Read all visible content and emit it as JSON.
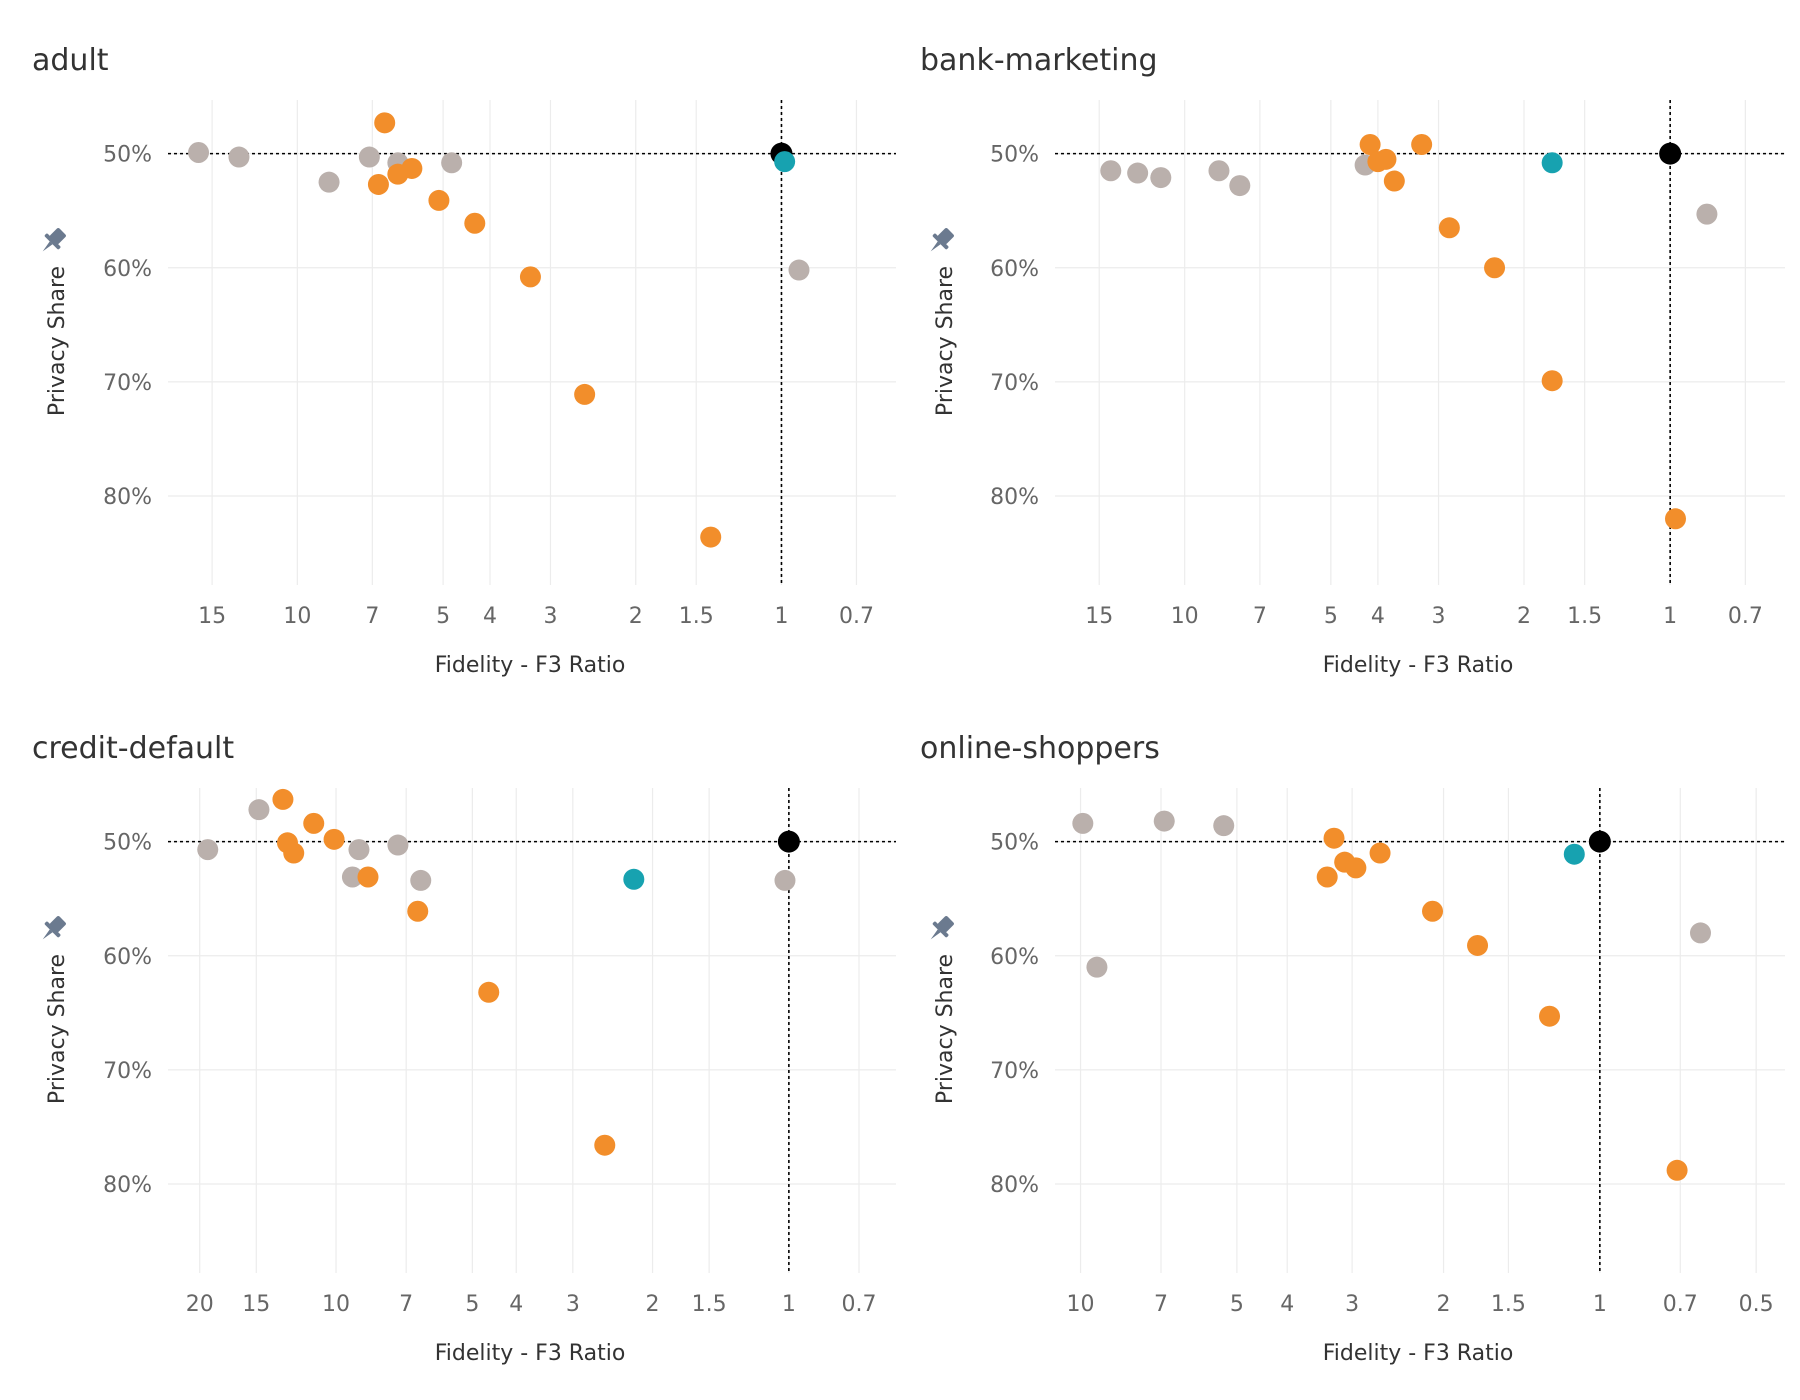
{
  "colors": {
    "synthetic": "#f28e2b",
    "baseline": "#bab0ac",
    "highlight": "#17a2b0",
    "reference": "#000000",
    "pin_icon": "#6b7a8f"
  },
  "icons": {
    "pin": "pin-icon"
  },
  "chart_data": [
    {
      "type": "scatter",
      "title": "adult",
      "xlabel": "Fidelity - F3 Ratio",
      "ylabel": "Privacy Share",
      "x_scale": "log-reversed",
      "xlim": [
        18.5,
        0.58
      ],
      "x_ticks": [
        15,
        10,
        7,
        5,
        4,
        3,
        2,
        1.5,
        1,
        0.7
      ],
      "y_reversed": true,
      "ylim": [
        0.453,
        0.878
      ],
      "y_ticks": [
        0.5,
        0.6,
        0.7,
        0.8
      ],
      "y_tick_labels": [
        "50%",
        "60%",
        "70%",
        "80%"
      ],
      "grid": true,
      "reference": {
        "x": 1,
        "y": 0.5
      },
      "points": [
        {
          "x": 16,
          "y": 0.499,
          "group": "baseline"
        },
        {
          "x": 13.2,
          "y": 0.503,
          "group": "baseline"
        },
        {
          "x": 8.6,
          "y": 0.525,
          "group": "baseline"
        },
        {
          "x": 7.1,
          "y": 0.503,
          "group": "baseline"
        },
        {
          "x": 6.2,
          "y": 0.508,
          "group": "baseline"
        },
        {
          "x": 4.8,
          "y": 0.508,
          "group": "baseline"
        },
        {
          "x": 0.92,
          "y": 0.602,
          "group": "baseline"
        },
        {
          "x": 6.6,
          "y": 0.473,
          "group": "synthetic"
        },
        {
          "x": 6.8,
          "y": 0.527,
          "group": "synthetic"
        },
        {
          "x": 6.2,
          "y": 0.518,
          "group": "synthetic"
        },
        {
          "x": 5.8,
          "y": 0.513,
          "group": "synthetic"
        },
        {
          "x": 5.1,
          "y": 0.541,
          "group": "synthetic"
        },
        {
          "x": 4.3,
          "y": 0.561,
          "group": "synthetic"
        },
        {
          "x": 3.3,
          "y": 0.608,
          "group": "synthetic"
        },
        {
          "x": 2.55,
          "y": 0.711,
          "group": "synthetic"
        },
        {
          "x": 1.4,
          "y": 0.836,
          "group": "synthetic"
        },
        {
          "x": 0.985,
          "y": 0.507,
          "group": "highlight"
        },
        {
          "x": 1,
          "y": 0.5,
          "group": "reference"
        }
      ]
    },
    {
      "type": "scatter",
      "title": "bank-marketing",
      "xlabel": "Fidelity - F3 Ratio",
      "ylabel": "Privacy Share",
      "x_scale": "log-reversed",
      "xlim": [
        18.5,
        0.58
      ],
      "x_ticks": [
        15,
        10,
        7,
        5,
        4,
        3,
        2,
        1.5,
        1,
        0.7
      ],
      "y_reversed": true,
      "ylim": [
        0.453,
        0.878
      ],
      "y_ticks": [
        0.5,
        0.6,
        0.7,
        0.8
      ],
      "y_tick_labels": [
        "50%",
        "60%",
        "70%",
        "80%"
      ],
      "grid": true,
      "reference": {
        "x": 1,
        "y": 0.5
      },
      "points": [
        {
          "x": 14.2,
          "y": 0.515,
          "group": "baseline"
        },
        {
          "x": 12.5,
          "y": 0.517,
          "group": "baseline"
        },
        {
          "x": 11.2,
          "y": 0.521,
          "group": "baseline"
        },
        {
          "x": 8.5,
          "y": 0.515,
          "group": "baseline"
        },
        {
          "x": 7.7,
          "y": 0.528,
          "group": "baseline"
        },
        {
          "x": 4.25,
          "y": 0.51,
          "group": "baseline"
        },
        {
          "x": 0.84,
          "y": 0.553,
          "group": "baseline"
        },
        {
          "x": 4.15,
          "y": 0.492,
          "group": "synthetic"
        },
        {
          "x": 4.0,
          "y": 0.507,
          "group": "synthetic"
        },
        {
          "x": 3.85,
          "y": 0.505,
          "group": "synthetic"
        },
        {
          "x": 3.25,
          "y": 0.492,
          "group": "synthetic"
        },
        {
          "x": 3.7,
          "y": 0.524,
          "group": "synthetic"
        },
        {
          "x": 2.85,
          "y": 0.565,
          "group": "synthetic"
        },
        {
          "x": 2.3,
          "y": 0.6,
          "group": "synthetic"
        },
        {
          "x": 1.75,
          "y": 0.699,
          "group": "synthetic"
        },
        {
          "x": 0.975,
          "y": 0.82,
          "group": "synthetic"
        },
        {
          "x": 1.75,
          "y": 0.508,
          "group": "highlight"
        },
        {
          "x": 1,
          "y": 0.5,
          "group": "reference"
        }
      ]
    },
    {
      "type": "scatter",
      "title": "credit-default",
      "xlabel": "Fidelity - F3 Ratio",
      "ylabel": "Privacy Share",
      "x_scale": "log-reversed",
      "xlim": [
        23.5,
        0.58
      ],
      "x_ticks": [
        20,
        15,
        10,
        7,
        5,
        4,
        3,
        2,
        1.5,
        1,
        0.7
      ],
      "y_reversed": true,
      "ylim": [
        0.453,
        0.878
      ],
      "y_ticks": [
        0.5,
        0.6,
        0.7,
        0.8
      ],
      "y_tick_labels": [
        "50%",
        "60%",
        "70%",
        "80%"
      ],
      "grid": true,
      "reference": {
        "x": 1,
        "y": 0.5
      },
      "points": [
        {
          "x": 19.2,
          "y": 0.507,
          "group": "baseline"
        },
        {
          "x": 14.8,
          "y": 0.472,
          "group": "baseline"
        },
        {
          "x": 9.2,
          "y": 0.531,
          "group": "baseline"
        },
        {
          "x": 8.9,
          "y": 0.507,
          "group": "baseline"
        },
        {
          "x": 7.3,
          "y": 0.503,
          "group": "baseline"
        },
        {
          "x": 6.5,
          "y": 0.534,
          "group": "baseline"
        },
        {
          "x": 1.02,
          "y": 0.534,
          "group": "baseline"
        },
        {
          "x": 13.1,
          "y": 0.463,
          "group": "synthetic"
        },
        {
          "x": 12.8,
          "y": 0.501,
          "group": "synthetic"
        },
        {
          "x": 12.4,
          "y": 0.51,
          "group": "synthetic"
        },
        {
          "x": 11.2,
          "y": 0.484,
          "group": "synthetic"
        },
        {
          "x": 10.1,
          "y": 0.498,
          "group": "synthetic"
        },
        {
          "x": 8.5,
          "y": 0.531,
          "group": "synthetic"
        },
        {
          "x": 6.6,
          "y": 0.561,
          "group": "synthetic"
        },
        {
          "x": 4.6,
          "y": 0.632,
          "group": "synthetic"
        },
        {
          "x": 2.55,
          "y": 0.766,
          "group": "synthetic"
        },
        {
          "x": 2.2,
          "y": 0.533,
          "group": "highlight"
        },
        {
          "x": 1,
          "y": 0.5,
          "group": "reference"
        }
      ]
    },
    {
      "type": "scatter",
      "title": "online-shoppers",
      "xlabel": "Fidelity - F3 Ratio",
      "ylabel": "Privacy Share",
      "x_scale": "log-reversed",
      "xlim": [
        11.2,
        0.44
      ],
      "x_ticks": [
        10,
        7,
        5,
        4,
        3,
        2,
        1.5,
        1,
        0.7,
        0.5
      ],
      "y_reversed": true,
      "ylim": [
        0.453,
        0.878
      ],
      "y_ticks": [
        0.5,
        0.6,
        0.7,
        0.8
      ],
      "y_tick_labels": [
        "50%",
        "60%",
        "70%",
        "80%"
      ],
      "grid": true,
      "reference": {
        "x": 1,
        "y": 0.5
      },
      "points": [
        {
          "x": 9.9,
          "y": 0.484,
          "group": "baseline"
        },
        {
          "x": 6.9,
          "y": 0.482,
          "group": "baseline"
        },
        {
          "x": 5.3,
          "y": 0.486,
          "group": "baseline"
        },
        {
          "x": 9.3,
          "y": 0.61,
          "group": "baseline"
        },
        {
          "x": 0.64,
          "y": 0.58,
          "group": "baseline"
        },
        {
          "x": 3.25,
          "y": 0.497,
          "group": "synthetic"
        },
        {
          "x": 3.1,
          "y": 0.518,
          "group": "synthetic"
        },
        {
          "x": 2.95,
          "y": 0.523,
          "group": "synthetic"
        },
        {
          "x": 3.35,
          "y": 0.531,
          "group": "synthetic"
        },
        {
          "x": 2.65,
          "y": 0.51,
          "group": "synthetic"
        },
        {
          "x": 2.1,
          "y": 0.561,
          "group": "synthetic"
        },
        {
          "x": 1.72,
          "y": 0.591,
          "group": "synthetic"
        },
        {
          "x": 1.25,
          "y": 0.653,
          "group": "synthetic"
        },
        {
          "x": 0.71,
          "y": 0.788,
          "group": "synthetic"
        },
        {
          "x": 1.12,
          "y": 0.511,
          "group": "highlight"
        },
        {
          "x": 1,
          "y": 0.5,
          "group": "reference"
        }
      ]
    }
  ]
}
